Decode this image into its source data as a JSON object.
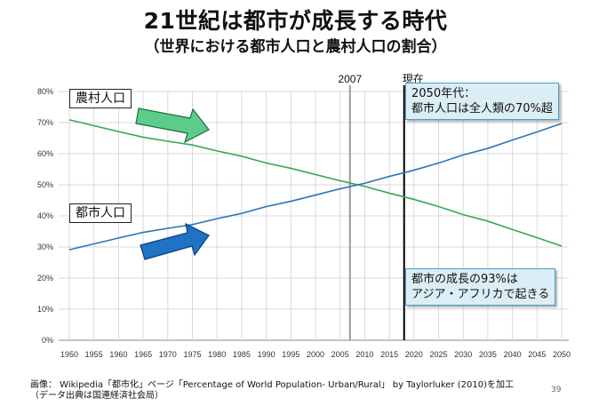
{
  "title": "21世紀は都市が成長する時代",
  "subtitle": "（世界における都市人口と農村人口の割合）",
  "colors": {
    "urban": "#2e75b6",
    "rural": "#3aa655",
    "arrow_blue": "#1f72c4",
    "arrow_green": "#5ccc8a"
  },
  "chart_data": {
    "type": "line",
    "x": [
      1950,
      1955,
      1960,
      1965,
      1970,
      1975,
      1980,
      1985,
      1990,
      1995,
      2000,
      2005,
      2010,
      2015,
      2020,
      2025,
      2030,
      2035,
      2040,
      2045,
      2050
    ],
    "x_ticks": [
      "1950",
      "1955",
      "1960",
      "1965",
      "1970",
      "1975",
      "1980",
      "1985",
      "1990",
      "1995",
      "2000",
      "2005",
      "2010",
      "2015",
      "2020",
      "2025",
      "2030",
      "2035",
      "2040",
      "2045",
      "2050"
    ],
    "y_ticks": [
      "0%",
      "10%",
      "20%",
      "30%",
      "40%",
      "50%",
      "60%",
      "70%",
      "80%"
    ],
    "ylim": [
      0,
      80
    ],
    "xlim": [
      1950,
      2050
    ],
    "grid": true,
    "series": [
      {
        "name": "農村人口",
        "values": [
          70.9,
          69.0,
          67.1,
          65.3,
          64.0,
          62.8,
          60.9,
          59.2,
          57.0,
          55.3,
          53.3,
          51.3,
          49.5,
          47.3,
          45.3,
          43.0,
          40.4,
          38.3,
          35.6,
          33.0,
          30.3
        ]
      },
      {
        "name": "都市人口",
        "values": [
          29.1,
          31.0,
          32.9,
          34.7,
          36.0,
          37.2,
          39.1,
          40.8,
          43.0,
          44.7,
          46.7,
          48.7,
          50.5,
          52.7,
          54.7,
          57.0,
          59.6,
          61.7,
          64.4,
          67.0,
          69.7
        ]
      }
    ],
    "reference_lines": [
      {
        "x": 2007,
        "label": "2007",
        "color": "#999999"
      },
      {
        "x": 2018,
        "label": "現在",
        "color": "#000000"
      }
    ]
  },
  "labels": {
    "rural": "農村人口",
    "urban": "都市人口"
  },
  "notes": {
    "top": [
      "2050年代：",
      "都市人口は全人類の70%超"
    ],
    "bottom": [
      "都市の成長の93%は",
      "アジア・アフリカで起きる"
    ]
  },
  "footer": {
    "line1": "画像： Wikipedia「都市化」ページ「Percentage of World Population- Urban/Rural」 by Taylorluker (2010)を加工",
    "line2": "（データ出典は国連経済社会局）"
  },
  "page_number": "39"
}
